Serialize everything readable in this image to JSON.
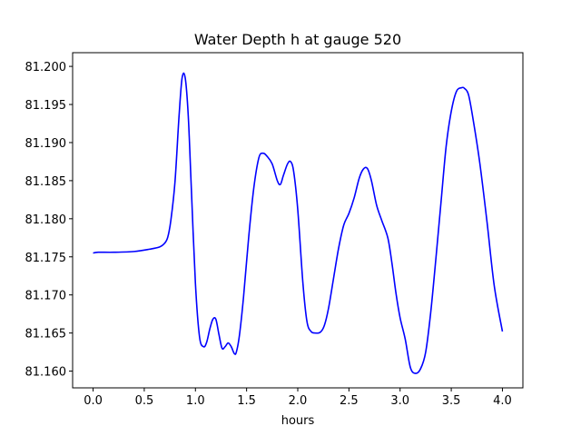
{
  "chart_data": {
    "type": "line",
    "title": "Water Depth h at gauge 520",
    "xlabel": "hours",
    "ylabel": "",
    "xlim": [
      -0.2,
      4.2
    ],
    "ylim": [
      81.1578,
      81.2018
    ],
    "grid": false,
    "legend": "none",
    "x_ticks": [
      0.0,
      0.5,
      1.0,
      1.5,
      2.0,
      2.5,
      3.0,
      3.5,
      4.0
    ],
    "x_tick_labels": [
      "0.0",
      "0.5",
      "1.0",
      "1.5",
      "2.0",
      "2.5",
      "3.0",
      "3.5",
      "4.0"
    ],
    "y_ticks": [
      81.16,
      81.165,
      81.17,
      81.175,
      81.18,
      81.185,
      81.19,
      81.195,
      81.2
    ],
    "y_tick_labels": [
      "81.160",
      "81.165",
      "81.170",
      "81.175",
      "81.180",
      "81.185",
      "81.190",
      "81.195",
      "81.200"
    ],
    "series": [
      {
        "color": "#0000ff",
        "x": [
          0.0,
          0.05,
          0.2,
          0.4,
          0.55,
          0.65,
          0.7,
          0.73,
          0.76,
          0.8,
          0.84,
          0.87,
          0.9,
          0.93,
          0.96,
          1.0,
          1.04,
          1.08,
          1.11,
          1.14,
          1.17,
          1.2,
          1.23,
          1.26,
          1.29,
          1.32,
          1.35,
          1.38,
          1.4,
          1.43,
          1.47,
          1.52,
          1.57,
          1.62,
          1.66,
          1.7,
          1.75,
          1.8,
          1.83,
          1.86,
          1.9,
          1.93,
          1.96,
          2.0,
          2.05,
          2.09,
          2.13,
          2.17,
          2.22,
          2.26,
          2.3,
          2.35,
          2.4,
          2.45,
          2.5,
          2.55,
          2.6,
          2.64,
          2.68,
          2.72,
          2.77,
          2.82,
          2.88,
          2.92,
          2.96,
          3.0,
          3.05,
          3.1,
          3.15,
          3.2,
          3.25,
          3.3,
          3.35,
          3.4,
          3.45,
          3.5,
          3.55,
          3.6,
          3.63,
          3.67,
          3.72,
          3.78,
          3.85,
          3.92,
          4.0
        ],
        "y": [
          81.1755,
          81.1756,
          81.1756,
          81.1757,
          81.176,
          81.1763,
          81.1768,
          81.1776,
          81.1798,
          81.1848,
          81.1935,
          81.1985,
          81.1985,
          81.1935,
          81.184,
          81.1715,
          81.1645,
          81.1632,
          81.1638,
          81.1655,
          81.1668,
          81.1668,
          81.1648,
          81.163,
          81.1632,
          81.1637,
          81.1632,
          81.1623,
          81.1625,
          81.1647,
          81.1697,
          81.1775,
          81.184,
          81.188,
          81.1886,
          81.1882,
          81.1872,
          81.185,
          81.1845,
          81.1857,
          81.1872,
          81.1875,
          81.1862,
          81.1812,
          81.1716,
          81.1665,
          81.1652,
          81.165,
          81.1651,
          81.166,
          81.1682,
          81.1722,
          81.1762,
          81.1792,
          81.1807,
          81.1827,
          81.1853,
          81.1865,
          81.1866,
          81.185,
          81.1818,
          81.1798,
          81.1775,
          81.1742,
          81.1702,
          81.167,
          81.1642,
          81.1605,
          81.1597,
          81.1603,
          81.1625,
          81.1678,
          81.1748,
          81.1822,
          81.1895,
          81.1941,
          81.1967,
          81.1972,
          81.1971,
          81.1962,
          81.1925,
          81.1872,
          81.1795,
          81.1712,
          81.1652
        ]
      }
    ]
  }
}
